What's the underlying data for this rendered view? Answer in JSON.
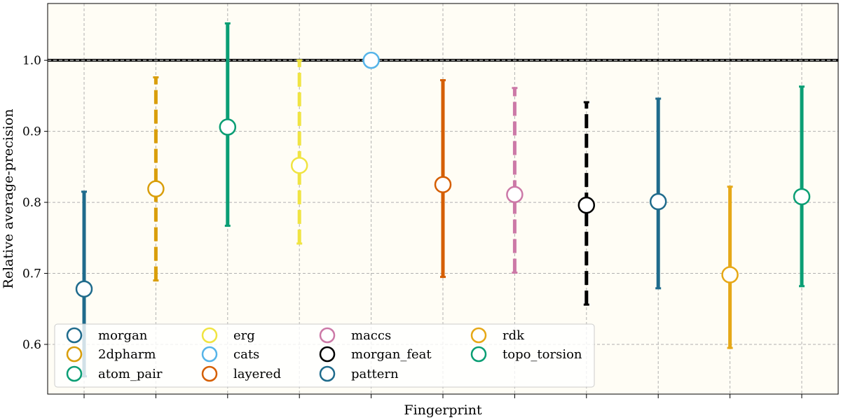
{
  "chart_data": {
    "type": "scatter",
    "title": "",
    "xlabel": "Fingerprint",
    "ylabel": "Relative average-precision",
    "ylim": [
      0.53,
      1.08
    ],
    "yticks": [
      "0.6",
      "0.7",
      "0.8",
      "0.9",
      "1.0"
    ],
    "ytick_values": [
      0.6,
      0.7,
      0.8,
      0.9,
      1.0
    ],
    "grid": true,
    "background_color": "#fffdf5",
    "reference_line": 1.0,
    "legend_placement": "lower-left",
    "series": [
      {
        "name": "morgan",
        "value": 0.678,
        "low": 0.555,
        "high": 0.815,
        "color": "#1f6b8c",
        "dashed": false
      },
      {
        "name": "2dpharm",
        "value": 0.819,
        "low": 0.69,
        "high": 0.976,
        "color": "#d99e0b",
        "dashed": true
      },
      {
        "name": "atom_pair",
        "value": 0.906,
        "low": 0.767,
        "high": 1.052,
        "color": "#0a9e74",
        "dashed": false
      },
      {
        "name": "erg",
        "value": 0.852,
        "low": 0.742,
        "high": 1.0,
        "color": "#f0e442",
        "dashed": true
      },
      {
        "name": "cats",
        "value": 1.0,
        "low": 1.0,
        "high": 1.0,
        "color": "#56b4e9",
        "dashed": false
      },
      {
        "name": "layered",
        "value": 0.825,
        "low": 0.695,
        "high": 0.972,
        "color": "#d55e00",
        "dashed": false
      },
      {
        "name": "maccs",
        "value": 0.811,
        "low": 0.701,
        "high": 0.961,
        "color": "#cc79a7",
        "dashed": true
      },
      {
        "name": "morgan_feat",
        "value": 0.796,
        "low": 0.656,
        "high": 0.941,
        "color": "#000000",
        "dashed": true
      },
      {
        "name": "pattern",
        "value": 0.801,
        "low": 0.679,
        "high": 0.946,
        "color": "#1f6b8c",
        "dashed": false
      },
      {
        "name": "rdk",
        "value": 0.698,
        "low": 0.595,
        "high": 0.822,
        "color": "#e6a817",
        "dashed": false
      },
      {
        "name": "topo_torsion",
        "value": 0.808,
        "low": 0.682,
        "high": 0.963,
        "color": "#0a9e74",
        "dashed": false
      }
    ]
  }
}
